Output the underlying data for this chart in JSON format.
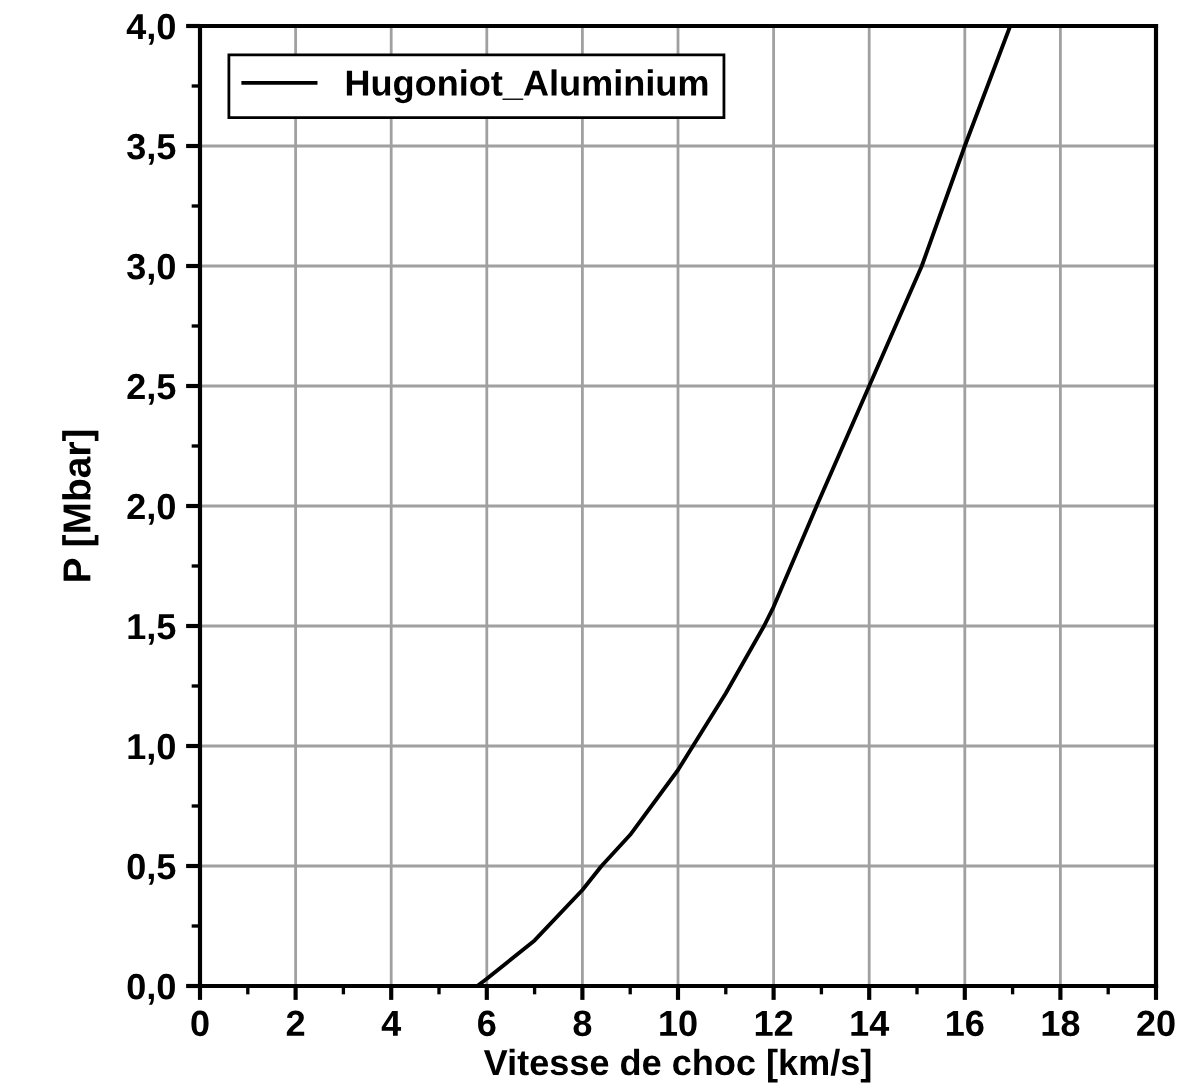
{
  "chart_data": {
    "type": "line",
    "xlabel": "Vitesse de choc [km/s]",
    "ylabel": "P [Mbar]",
    "x": [
      5.8,
      6,
      7,
      8,
      8.4,
      9,
      10,
      11,
      11.8,
      12,
      12.9,
      14,
      15.1,
      16,
      16.95
    ],
    "series": [
      {
        "name": "Hugoniot_Aluminium",
        "color": "#000000",
        "values": [
          0,
          0.03,
          0.19,
          0.4,
          0.5,
          0.63,
          0.9,
          1.22,
          1.5,
          1.58,
          2.0,
          2.5,
          3.0,
          3.5,
          4.0
        ]
      }
    ],
    "xlim": [
      0,
      20
    ],
    "xticks": [
      0,
      2,
      4,
      6,
      8,
      10,
      12,
      14,
      16,
      18,
      20
    ],
    "ylim": [
      0,
      4
    ],
    "yticks": [
      {
        "value": 0,
        "label": "0,0"
      },
      {
        "value": 0.5,
        "label": "0,5"
      },
      {
        "value": 1,
        "label": "1,0"
      },
      {
        "value": 1.5,
        "label": "1,5"
      },
      {
        "value": 2,
        "label": "2,0"
      },
      {
        "value": 2.5,
        "label": "2,5"
      },
      {
        "value": 3,
        "label": "3,0"
      },
      {
        "value": 3.5,
        "label": "3,5"
      },
      {
        "value": 4,
        "label": "4,0"
      }
    ],
    "grid": true,
    "legend": "top left",
    "marker": "none",
    "line_style": "solid"
  }
}
